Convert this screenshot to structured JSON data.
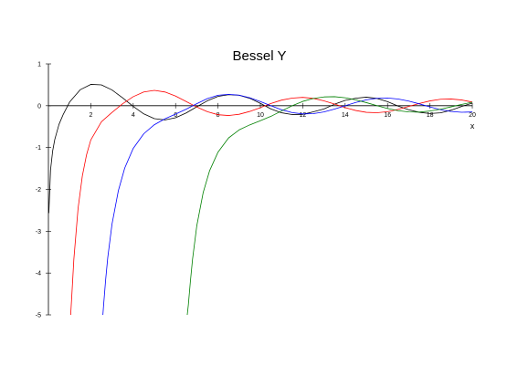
{
  "chart_data": {
    "type": "line",
    "title": "Bessel Y",
    "xlabel": "x",
    "ylabel": "",
    "xlim": [
      0,
      20
    ],
    "ylim": [
      -5,
      1
    ],
    "xticks": [
      2,
      4,
      6,
      8,
      10,
      12,
      14,
      16,
      18,
      20
    ],
    "yticks": [
      1,
      0,
      -1,
      -2,
      -3,
      -4,
      -5
    ],
    "grid": false,
    "legend": "none",
    "series": [
      {
        "color": "#000000",
        "x": [
          0.02,
          0.1,
          0.2,
          0.3,
          0.5,
          0.7,
          1.0,
          1.5,
          2.0,
          2.5,
          3.0,
          3.5,
          4.0,
          4.5,
          5.0,
          5.5,
          6.0,
          6.5,
          7.0,
          7.5,
          8.0,
          8.5,
          9.0,
          9.5,
          10.0,
          10.5,
          11.0,
          11.5,
          12.0,
          12.5,
          13.0,
          13.5,
          14.0,
          14.5,
          15.0,
          15.5,
          16.0,
          16.5,
          17.0,
          17.5,
          18.0,
          18.5,
          19.0,
          19.5,
          20.0
        ],
        "y": [
          -2.566,
          -1.534,
          -1.081,
          -0.807,
          -0.444,
          -0.206,
          0.088,
          0.382,
          0.51,
          0.498,
          0.377,
          0.189,
          -0.017,
          -0.195,
          -0.309,
          -0.339,
          -0.288,
          -0.173,
          -0.026,
          0.118,
          0.223,
          0.264,
          0.25,
          0.178,
          0.056,
          -0.077,
          -0.169,
          -0.21,
          -0.207,
          -0.146,
          -0.078,
          0.036,
          0.127,
          0.179,
          0.205,
          0.175,
          0.096,
          -0.008,
          -0.097,
          -0.158,
          -0.187,
          -0.17,
          -0.106,
          -0.016,
          0.063
        ]
      },
      {
        "color": "#ff0000",
        "x": [
          1.05,
          1.1,
          1.2,
          1.4,
          1.6,
          1.8,
          2.0,
          2.5,
          3.0,
          3.5,
          4.0,
          4.5,
          5.0,
          5.5,
          6.0,
          6.5,
          7.0,
          7.5,
          8.0,
          8.5,
          9.0,
          9.5,
          10.0,
          10.5,
          11.0,
          11.5,
          12.0,
          12.5,
          13.0,
          13.5,
          14.0,
          14.5,
          15.0,
          15.5,
          16.0,
          16.5,
          17.0,
          17.5,
          18.0,
          18.5,
          19.0,
          19.5,
          20.0
        ],
        "y": [
          -5.0,
          -4.57,
          -3.67,
          -2.45,
          -1.68,
          -1.17,
          -0.818,
          -0.383,
          -0.16,
          0.046,
          0.216,
          0.33,
          0.368,
          0.328,
          0.23,
          0.1,
          -0.032,
          -0.142,
          -0.215,
          -0.234,
          -0.204,
          -0.136,
          -0.046,
          0.053,
          0.134,
          0.182,
          0.199,
          0.175,
          0.117,
          0.039,
          -0.045,
          -0.114,
          -0.158,
          -0.167,
          -0.142,
          -0.089,
          -0.018,
          0.054,
          0.115,
          0.154,
          0.161,
          0.137,
          0.088
        ]
      },
      {
        "color": "#0000ff",
        "x": [
          2.57,
          2.6,
          2.7,
          2.8,
          3.0,
          3.3,
          3.6,
          4.0,
          4.5,
          5.0,
          5.5,
          6.0,
          6.5,
          7.0,
          7.5,
          8.0,
          8.5,
          9.0,
          9.5,
          10.0,
          10.5,
          11.0,
          11.5,
          12.0,
          12.5,
          13.0,
          13.5,
          14.0,
          14.5,
          15.0,
          15.5,
          16.0,
          16.5,
          17.0,
          17.5,
          18.0,
          18.5,
          19.0,
          19.5,
          20.0
        ],
        "y": [
          -5.0,
          -4.79,
          -4.16,
          -3.63,
          -2.83,
          -2.03,
          -1.49,
          -1.02,
          -0.669,
          -0.453,
          -0.312,
          -0.2,
          -0.082,
          0.049,
          0.171,
          0.25,
          0.271,
          0.253,
          0.19,
          0.1,
          0.0,
          -0.095,
          -0.164,
          -0.196,
          -0.189,
          -0.148,
          -0.08,
          -0.001,
          0.078,
          0.141,
          0.177,
          0.184,
          0.16,
          0.111,
          0.044,
          -0.028,
          -0.093,
          -0.137,
          -0.157,
          -0.148
        ]
      },
      {
        "color": "#008000",
        "x": [
          6.55,
          6.6,
          6.7,
          6.8,
          7.0,
          7.3,
          7.6,
          8.0,
          8.5,
          9.0,
          9.5,
          10.0,
          10.5,
          11.0,
          11.5,
          12.0,
          12.5,
          13.0,
          13.5,
          14.0,
          14.5,
          15.0,
          15.5,
          16.0,
          16.5,
          17.0,
          17.5,
          18.0,
          18.5,
          19.0,
          19.5,
          20.0
        ],
        "y": [
          -5.0,
          -4.77,
          -4.19,
          -3.67,
          -2.87,
          -2.08,
          -1.56,
          -1.11,
          -0.77,
          -0.577,
          -0.458,
          -0.359,
          -0.253,
          -0.125,
          0.0,
          0.104,
          0.174,
          0.21,
          0.216,
          0.19,
          0.14,
          0.074,
          0.003,
          -0.066,
          -0.119,
          -0.149,
          -0.152,
          -0.127,
          -0.083,
          -0.027,
          0.031,
          0.083
        ]
      }
    ]
  }
}
